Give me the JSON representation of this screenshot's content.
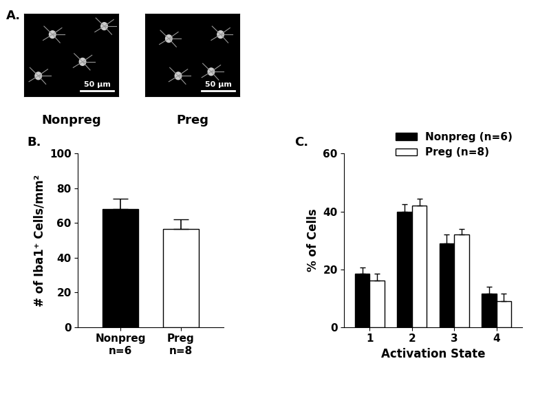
{
  "figure_a": {
    "title": "A.",
    "images": [
      {
        "label": "Nonpreg",
        "scale_bar": "50 μm"
      },
      {
        "label": "Preg",
        "scale_bar": "50 μm"
      }
    ]
  },
  "chart_data": [
    {
      "type": "bar",
      "title": "B.",
      "categories": [
        "Nonpreg\nn=6",
        "Preg\nn=8"
      ],
      "values": [
        68,
        56.5
      ],
      "errors": [
        6,
        5.5
      ],
      "colors": [
        "#000000",
        "#ffffff"
      ],
      "y_label": "# of Iba1⁺ Cells/mm²",
      "ylim": [
        0,
        100
      ],
      "yticks": [
        0,
        20,
        40,
        60,
        80,
        100
      ]
    },
    {
      "type": "bar",
      "title": "C.",
      "categories": [
        "1",
        "2",
        "3",
        "4"
      ],
      "series": [
        {
          "name": "Nonpreg (n=6)",
          "color": "#000000",
          "values": [
            18.5,
            40,
            29,
            11.5
          ],
          "errors": [
            2,
            2.5,
            3,
            2.5
          ]
        },
        {
          "name": "Preg (n=8)",
          "color": "#ffffff",
          "values": [
            16,
            42,
            32,
            9
          ],
          "errors": [
            2.5,
            2.5,
            2,
            2.5
          ]
        }
      ],
      "x_label": "Activation State",
      "y_label": "% of Cells",
      "ylim": [
        0,
        60
      ],
      "yticks": [
        0,
        20,
        40,
        60
      ],
      "legend": "upper right"
    }
  ]
}
